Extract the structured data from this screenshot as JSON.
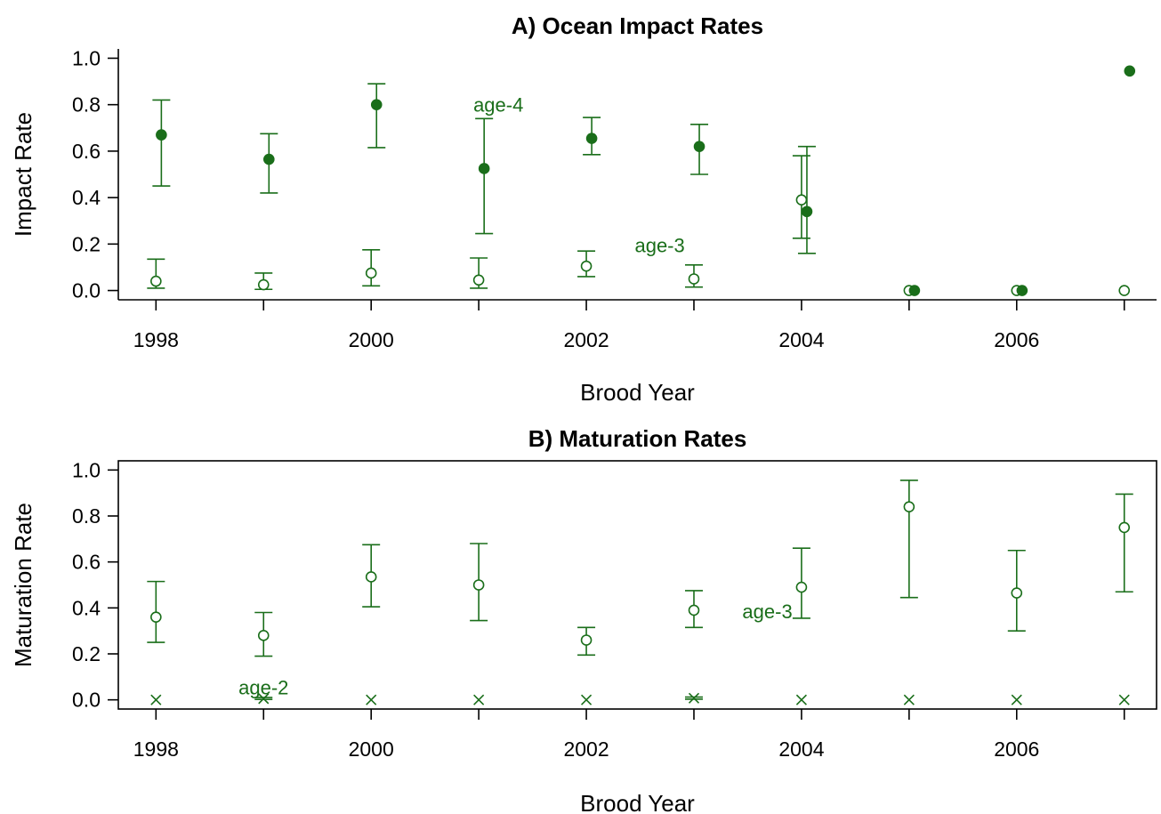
{
  "colors": {
    "series": "#1a6e1a",
    "axis": "#000000"
  },
  "chart_data": [
    {
      "type": "scatter",
      "title": "A) Ocean Impact Rates",
      "xlabel": "Brood Year",
      "ylabel": "Impact Rate",
      "xlim": [
        1997.65,
        2007.3
      ],
      "ylim": [
        -0.04,
        1.04
      ],
      "xticks": [
        1998,
        2000,
        2002,
        2004,
        2006
      ],
      "yticks": [
        0.0,
        0.2,
        0.4,
        0.6,
        0.8,
        1.0
      ],
      "ytick_labels": [
        "0.0",
        "0.2",
        "0.4",
        "0.6",
        "0.8",
        "1.0"
      ],
      "box": "left-bottom",
      "series": [
        {
          "name": "age-3",
          "marker": "open-circle",
          "points": [
            {
              "x": 1998,
              "y": 0.04,
              "lo": 0.01,
              "hi": 0.135
            },
            {
              "x": 1999,
              "y": 0.025,
              "lo": 0.005,
              "hi": 0.075
            },
            {
              "x": 2000,
              "y": 0.075,
              "lo": 0.02,
              "hi": 0.175
            },
            {
              "x": 2001,
              "y": 0.045,
              "lo": 0.01,
              "hi": 0.14
            },
            {
              "x": 2002,
              "y": 0.105,
              "lo": 0.06,
              "hi": 0.17
            },
            {
              "x": 2003,
              "y": 0.05,
              "lo": 0.015,
              "hi": 0.11
            },
            {
              "x": 2004,
              "y": 0.39,
              "lo": 0.225,
              "hi": 0.58
            },
            {
              "x": 2005,
              "y": 0.0
            },
            {
              "x": 2006,
              "y": 0.0
            },
            {
              "x": 2007,
              "y": 0.0
            }
          ]
        },
        {
          "name": "age-4",
          "marker": "filled-circle",
          "points": [
            {
              "x": 1998.05,
              "y": 0.67,
              "lo": 0.45,
              "hi": 0.82
            },
            {
              "x": 1999.05,
              "y": 0.565,
              "lo": 0.42,
              "hi": 0.675
            },
            {
              "x": 2000.05,
              "y": 0.8,
              "lo": 0.615,
              "hi": 0.89
            },
            {
              "x": 2001.05,
              "y": 0.525,
              "lo": 0.245,
              "hi": 0.74
            },
            {
              "x": 2002.05,
              "y": 0.655,
              "lo": 0.585,
              "hi": 0.745
            },
            {
              "x": 2003.05,
              "y": 0.62,
              "lo": 0.5,
              "hi": 0.715
            },
            {
              "x": 2004.05,
              "y": 0.34,
              "lo": 0.16,
              "hi": 0.62
            },
            {
              "x": 2005.05,
              "y": 0.0
            },
            {
              "x": 2006.05,
              "y": 0.0
            },
            {
              "x": 2007.05,
              "y": 0.945
            }
          ]
        }
      ],
      "annotations": [
        {
          "text": "age-4",
          "x": 2000.95,
          "y": 0.8
        },
        {
          "text": "age-3",
          "x": 2002.45,
          "y": 0.195
        }
      ]
    },
    {
      "type": "scatter",
      "title": "B) Maturation Rates",
      "xlabel": "Brood Year",
      "ylabel": "Maturation Rate",
      "xlim": [
        1997.65,
        2007.3
      ],
      "ylim": [
        -0.04,
        1.04
      ],
      "xticks": [
        1998,
        2000,
        2002,
        2004,
        2006
      ],
      "yticks": [
        0.0,
        0.2,
        0.4,
        0.6,
        0.8,
        1.0
      ],
      "ytick_labels": [
        "0.0",
        "0.2",
        "0.4",
        "0.6",
        "0.8",
        "1.0"
      ],
      "box": "full",
      "series": [
        {
          "name": "age-2",
          "marker": "cross",
          "points": [
            {
              "x": 1998,
              "y": 0.0
            },
            {
              "x": 1999,
              "y": 0.005,
              "lo": 0.002,
              "hi": 0.01
            },
            {
              "x": 2000,
              "y": 0.0
            },
            {
              "x": 2001,
              "y": 0.0
            },
            {
              "x": 2002,
              "y": 0.0
            },
            {
              "x": 2003,
              "y": 0.007,
              "lo": 0.003,
              "hi": 0.012
            },
            {
              "x": 2004,
              "y": 0.0
            },
            {
              "x": 2005,
              "y": 0.0
            },
            {
              "x": 2006,
              "y": 0.0
            },
            {
              "x": 2007,
              "y": 0.0
            }
          ]
        },
        {
          "name": "age-3",
          "marker": "open-circle",
          "points": [
            {
              "x": 1998,
              "y": 0.36,
              "lo": 0.25,
              "hi": 0.515
            },
            {
              "x": 1999,
              "y": 0.28,
              "lo": 0.19,
              "hi": 0.38
            },
            {
              "x": 2000,
              "y": 0.535,
              "lo": 0.405,
              "hi": 0.675
            },
            {
              "x": 2001,
              "y": 0.5,
              "lo": 0.345,
              "hi": 0.68
            },
            {
              "x": 2002,
              "y": 0.26,
              "lo": 0.195,
              "hi": 0.315
            },
            {
              "x": 2003,
              "y": 0.39,
              "lo": 0.315,
              "hi": 0.475
            },
            {
              "x": 2004,
              "y": 0.49,
              "lo": 0.355,
              "hi": 0.66
            },
            {
              "x": 2005,
              "y": 0.84,
              "lo": 0.445,
              "hi": 0.955
            },
            {
              "x": 2006,
              "y": 0.465,
              "lo": 0.3,
              "hi": 0.65
            },
            {
              "x": 2007,
              "y": 0.75,
              "lo": 0.47,
              "hi": 0.895
            }
          ]
        }
      ],
      "annotations": [
        {
          "text": "age-3",
          "x": 2003.45,
          "y": 0.385
        },
        {
          "text": "age-2",
          "x": 1999.0,
          "y": 0.055
        }
      ]
    }
  ]
}
